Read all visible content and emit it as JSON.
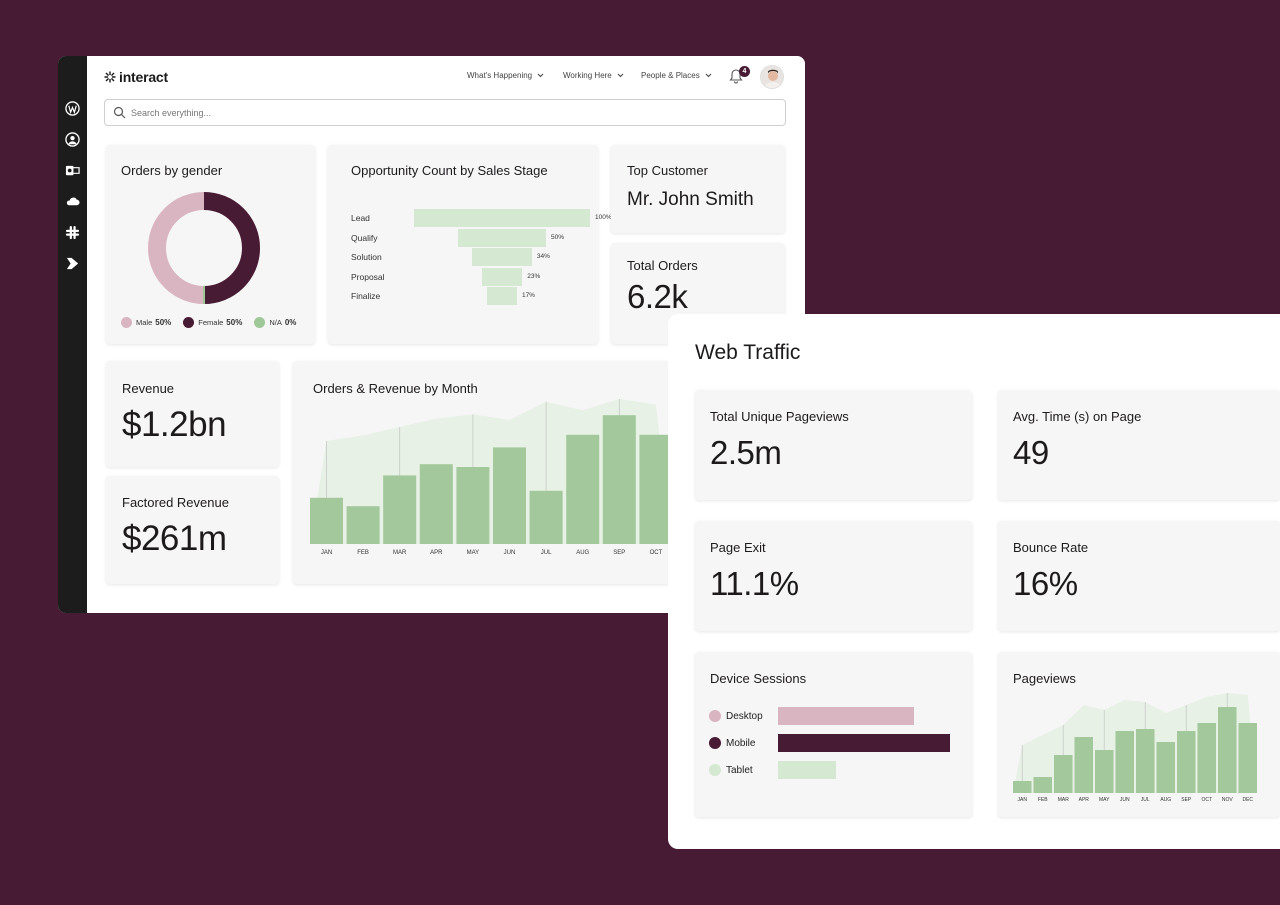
{
  "app": {
    "name": "interact"
  },
  "nav": [
    {
      "label": "What's Happening"
    },
    {
      "label": "Working Here"
    },
    {
      "label": "People & Places"
    }
  ],
  "notifications": {
    "count": "4"
  },
  "search": {
    "placeholder": "Search everything..."
  },
  "sidebar_icons": [
    "workplace-icon",
    "profile-icon",
    "outlook-icon",
    "cloud-icon",
    "slack-icon",
    "play-icon"
  ],
  "colors": {
    "brand": "#471b33",
    "male": "#d9b4c1",
    "female": "#471b33",
    "na": "#9ec898",
    "bar": "#a3c89c",
    "light_green": "#d5e8d1",
    "page_bg": "#471b33"
  },
  "orders_by_gender": {
    "title": "Orders by gender",
    "legend": [
      {
        "label": "Male",
        "value": "50%"
      },
      {
        "label": "Female",
        "value": "50%"
      },
      {
        "label": "N/A",
        "value": "0%"
      }
    ]
  },
  "funnel": {
    "title": "Opportunity Count by Sales Stage",
    "stages": [
      {
        "label": "Lead",
        "value": "100%"
      },
      {
        "label": "Qualify",
        "value": "50%"
      },
      {
        "label": "Solution",
        "value": "34%"
      },
      {
        "label": "Proposal",
        "value": "23%"
      },
      {
        "label": "Finalize",
        "value": "17%"
      }
    ]
  },
  "top_customer": {
    "title": "Top Customer",
    "value": "Mr. John Smith"
  },
  "total_orders": {
    "title": "Total Orders",
    "value": "6.2k"
  },
  "revenue": {
    "title": "Revenue",
    "value": "$1.2bn"
  },
  "factored_revenue": {
    "title": "Factored Revenue",
    "value": "$261m"
  },
  "orders_revenue": {
    "title": "Orders & Revenue by Month"
  },
  "web_traffic": {
    "title": "Web Traffic",
    "total_unique_pageviews": {
      "title": "Total Unique Pageviews",
      "value": "2.5m"
    },
    "avg_time": {
      "title": "Avg. Time (s) on Page",
      "value": "49"
    },
    "page_exit": {
      "title": "Page Exit",
      "value": "11.1%"
    },
    "bounce_rate": {
      "title": "Bounce Rate",
      "value": "16%"
    },
    "device_sessions": {
      "title": "Device Sessions",
      "items": [
        {
          "label": "Desktop",
          "share": 0.79
        },
        {
          "label": "Mobile",
          "share": 1.0
        },
        {
          "label": "Tablet",
          "share": 0.34
        }
      ]
    },
    "pageviews": {
      "title": "Pageviews"
    }
  },
  "chart_data": [
    {
      "type": "pie",
      "title": "Orders by gender",
      "categories": [
        "Male",
        "Female",
        "N/A"
      ],
      "values": [
        50,
        50,
        0
      ]
    },
    {
      "type": "bar",
      "title": "Opportunity Count by Sales Stage",
      "categories": [
        "Lead",
        "Qualify",
        "Solution",
        "Proposal",
        "Finalize"
      ],
      "values": [
        100,
        50,
        34,
        23,
        17
      ]
    },
    {
      "type": "bar",
      "title": "Orders & Revenue by Month",
      "categories": [
        "JAN",
        "FEB",
        "MAR",
        "APR",
        "MAY",
        "JUN",
        "JUL",
        "AUG",
        "SEP",
        "OCT"
      ],
      "series": [
        {
          "type": "bar",
          "values": [
            33,
            27,
            49,
            57,
            55,
            69,
            38,
            78,
            92,
            78
          ]
        },
        {
          "type": "area",
          "values": [
            70,
            74,
            80,
            86,
            89,
            85,
            98,
            92,
            100,
            96
          ]
        }
      ],
      "ylim": [
        0,
        100
      ]
    },
    {
      "type": "bar",
      "title": "Device Sessions",
      "categories": [
        "Desktop",
        "Mobile",
        "Tablet"
      ],
      "values": [
        79,
        100,
        34
      ]
    },
    {
      "type": "bar",
      "title": "Pageviews",
      "categories": [
        "JAN",
        "FEB",
        "MAR",
        "APR",
        "MAY",
        "JUN",
        "JUL",
        "AUG",
        "SEP",
        "OCT",
        "NOV",
        "DEC"
      ],
      "series": [
        {
          "type": "bar",
          "values": [
            12,
            16,
            38,
            56,
            43,
            62,
            64,
            51,
            62,
            70,
            86,
            70
          ]
        },
        {
          "type": "area",
          "values": [
            30,
            40,
            50,
            70,
            65,
            75,
            73,
            62,
            70,
            78,
            82,
            80
          ]
        }
      ],
      "ylim": [
        0,
        100
      ]
    }
  ]
}
